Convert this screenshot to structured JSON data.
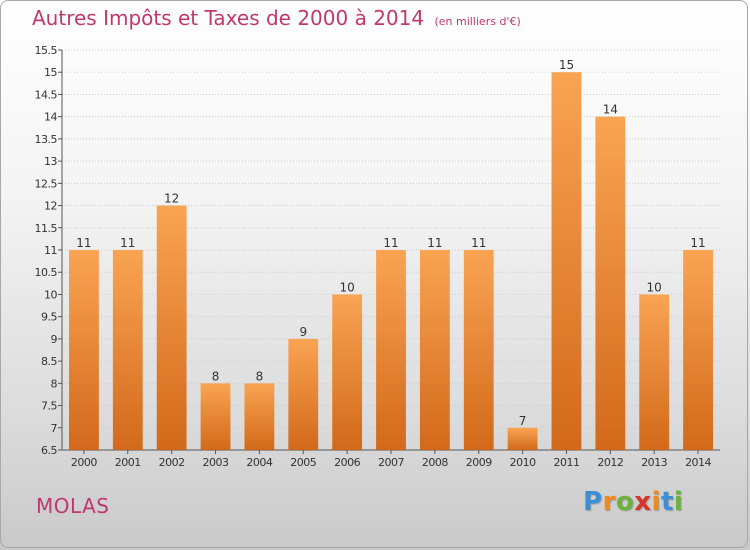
{
  "header": {
    "title": "Autres Impôts et Taxes de 2000 à 2014",
    "unit": "(en milliers d'€)"
  },
  "commune": "MOLAS",
  "logo": {
    "text": "Proxiti",
    "letter_colors": [
      "#3b8fd6",
      "#f08a1c",
      "#6cb33e",
      "#d9342b",
      "#f08a1c",
      "#3b8fd6",
      "#6cb33e"
    ]
  },
  "colors": {
    "bar_top": "#f9a453",
    "bar_bottom": "#d2691a",
    "axis_text": "#333333",
    "grid": "#cccccc"
  },
  "chart_data": {
    "type": "bar",
    "title": "Autres Impôts et Taxes de 2000 à 2014",
    "xlabel": "",
    "ylabel": "",
    "ylim": [
      6.5,
      15.5
    ],
    "yticks": [
      6.5,
      7,
      7.5,
      8,
      8.5,
      9,
      9.5,
      10,
      10.5,
      11,
      11.5,
      12,
      12.5,
      13,
      13.5,
      14,
      14.5,
      15,
      15.5
    ],
    "grid": true,
    "categories": [
      "2000",
      "2001",
      "2002",
      "2003",
      "2004",
      "2005",
      "2006",
      "2007",
      "2008",
      "2009",
      "2010",
      "2011",
      "2012",
      "2013",
      "2014"
    ],
    "values": [
      11,
      11,
      12,
      8,
      8,
      9,
      10,
      11,
      11,
      11,
      7,
      15,
      14,
      10,
      11
    ]
  }
}
